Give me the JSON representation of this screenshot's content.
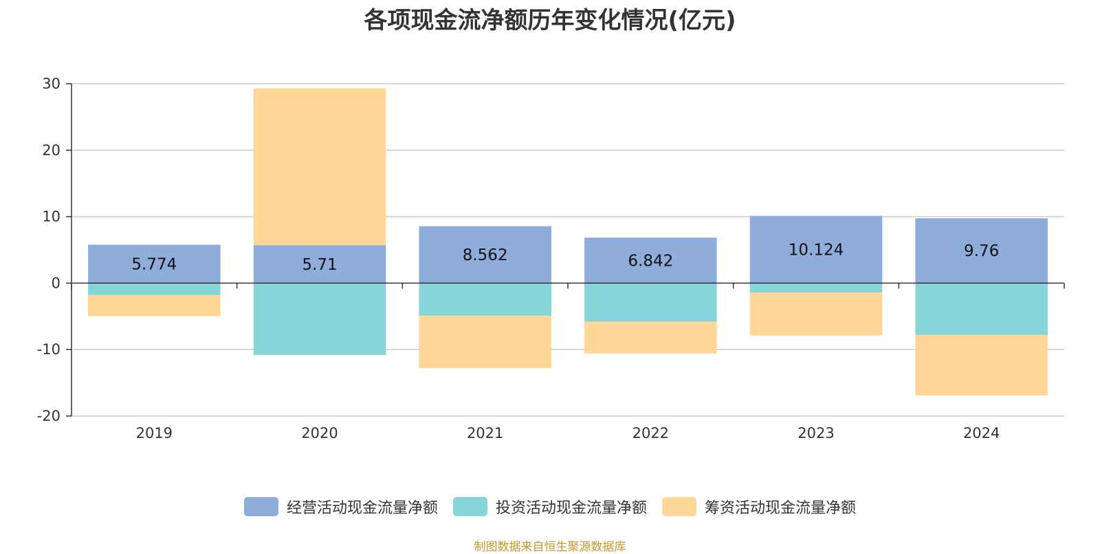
{
  "title": "各项现金流净额历年变化情况(亿元)",
  "source": "制图数据来自恒生聚源数据库",
  "chart_data": {
    "type": "bar",
    "stacked": true,
    "title": "各项现金流净额历年变化情况(亿元)",
    "categories": [
      "2019",
      "2020",
      "2021",
      "2022",
      "2023",
      "2024"
    ],
    "ylim": [
      -20,
      30
    ],
    "yticks": [
      30,
      20,
      10,
      0,
      -10,
      -20
    ],
    "grid": true,
    "legend_position": "bottom",
    "series": [
      {
        "name": "经营活动现金流量净额",
        "color": "#8eaddb",
        "values": [
          5.774,
          5.71,
          8.562,
          6.842,
          10.124,
          9.76
        ],
        "show_labels": true
      },
      {
        "name": "投资活动现金流量净额",
        "color": "#86d6d9",
        "values": [
          -1.8,
          -10.8,
          -4.9,
          -5.8,
          -1.4,
          -7.8
        ],
        "show_labels": false
      },
      {
        "name": "筹资活动现金流量净额",
        "color": "#ffd899",
        "values": [
          -3.2,
          23.6,
          -7.9,
          -4.8,
          -6.5,
          -9.1
        ],
        "show_labels": false
      }
    ]
  }
}
